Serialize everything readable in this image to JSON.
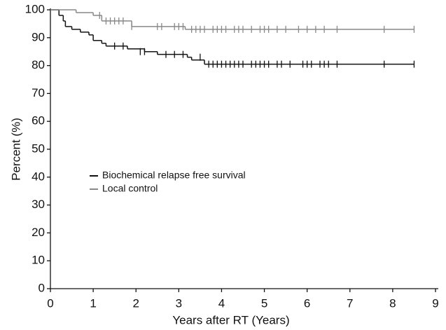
{
  "chart_data": {
    "type": "step",
    "xlabel": "Years after RT (Years)",
    "ylabel": "Percent (%)",
    "xlim": [
      0,
      9
    ],
    "ylim": [
      0,
      100
    ],
    "xticks": [
      0,
      1,
      2,
      3,
      4,
      5,
      6,
      7,
      8,
      9
    ],
    "yticks": [
      0,
      10,
      20,
      30,
      40,
      50,
      60,
      70,
      80,
      90,
      100
    ],
    "grid": false,
    "legend": "center-left",
    "series": [
      {
        "name": "Biochemical relapse free survival",
        "color": "#111111",
        "x": [
          0,
          0.2,
          0.3,
          0.35,
          0.5,
          0.7,
          0.9,
          1.0,
          1.2,
          1.3,
          1.8,
          2.2,
          2.5,
          3.2,
          3.3,
          3.6,
          8.5
        ],
        "values": [
          100,
          98,
          96,
          94,
          93,
          92,
          91,
          89,
          88,
          87,
          86,
          85,
          84,
          83,
          82,
          80.5,
          80.5
        ],
        "censored_x": [
          1.5,
          1.7,
          2.1,
          2.2,
          2.7,
          2.9,
          3.1,
          3.5,
          3.7,
          3.8,
          3.9,
          4.0,
          4.1,
          4.2,
          4.3,
          4.4,
          4.5,
          4.7,
          4.8,
          4.9,
          5.0,
          5.1,
          5.3,
          5.4,
          5.6,
          5.9,
          6.0,
          6.1,
          6.3,
          6.4,
          6.5,
          6.7,
          7.8,
          8.5
        ],
        "censored_y": [
          87,
          87,
          85,
          85,
          84,
          84,
          84,
          83,
          80.5,
          80.5,
          80.5,
          80.5,
          80.5,
          80.5,
          80.5,
          80.5,
          80.5,
          80.5,
          80.5,
          80.5,
          80.5,
          80.5,
          80.5,
          80.5,
          80.5,
          80.5,
          80.5,
          80.5,
          80.5,
          80.5,
          80.5,
          80.5,
          80.5,
          80.5
        ]
      },
      {
        "name": "Local control",
        "color": "#888888",
        "x": [
          0,
          0.6,
          1.0,
          1.2,
          1.9,
          3.15,
          8.5
        ],
        "values": [
          100,
          99,
          98,
          96,
          94,
          93,
          93
        ],
        "censored_x": [
          1.15,
          1.3,
          1.4,
          1.5,
          1.6,
          1.7,
          1.9,
          2.5,
          2.6,
          2.9,
          3.0,
          3.1,
          3.3,
          3.4,
          3.5,
          3.6,
          3.8,
          3.9,
          4.0,
          4.1,
          4.3,
          4.4,
          4.5,
          4.7,
          4.9,
          5.0,
          5.1,
          5.3,
          5.5,
          5.8,
          6.0,
          6.2,
          6.4,
          6.7,
          7.8,
          8.5
        ],
        "censored_y": [
          98,
          96,
          96,
          96,
          96,
          96,
          94,
          94,
          94,
          94,
          94,
          94,
          93,
          93,
          93,
          93,
          93,
          93,
          93,
          93,
          93,
          93,
          93,
          93,
          93,
          93,
          93,
          93,
          93,
          93,
          93,
          93,
          93,
          93,
          93,
          93
        ]
      }
    ]
  }
}
